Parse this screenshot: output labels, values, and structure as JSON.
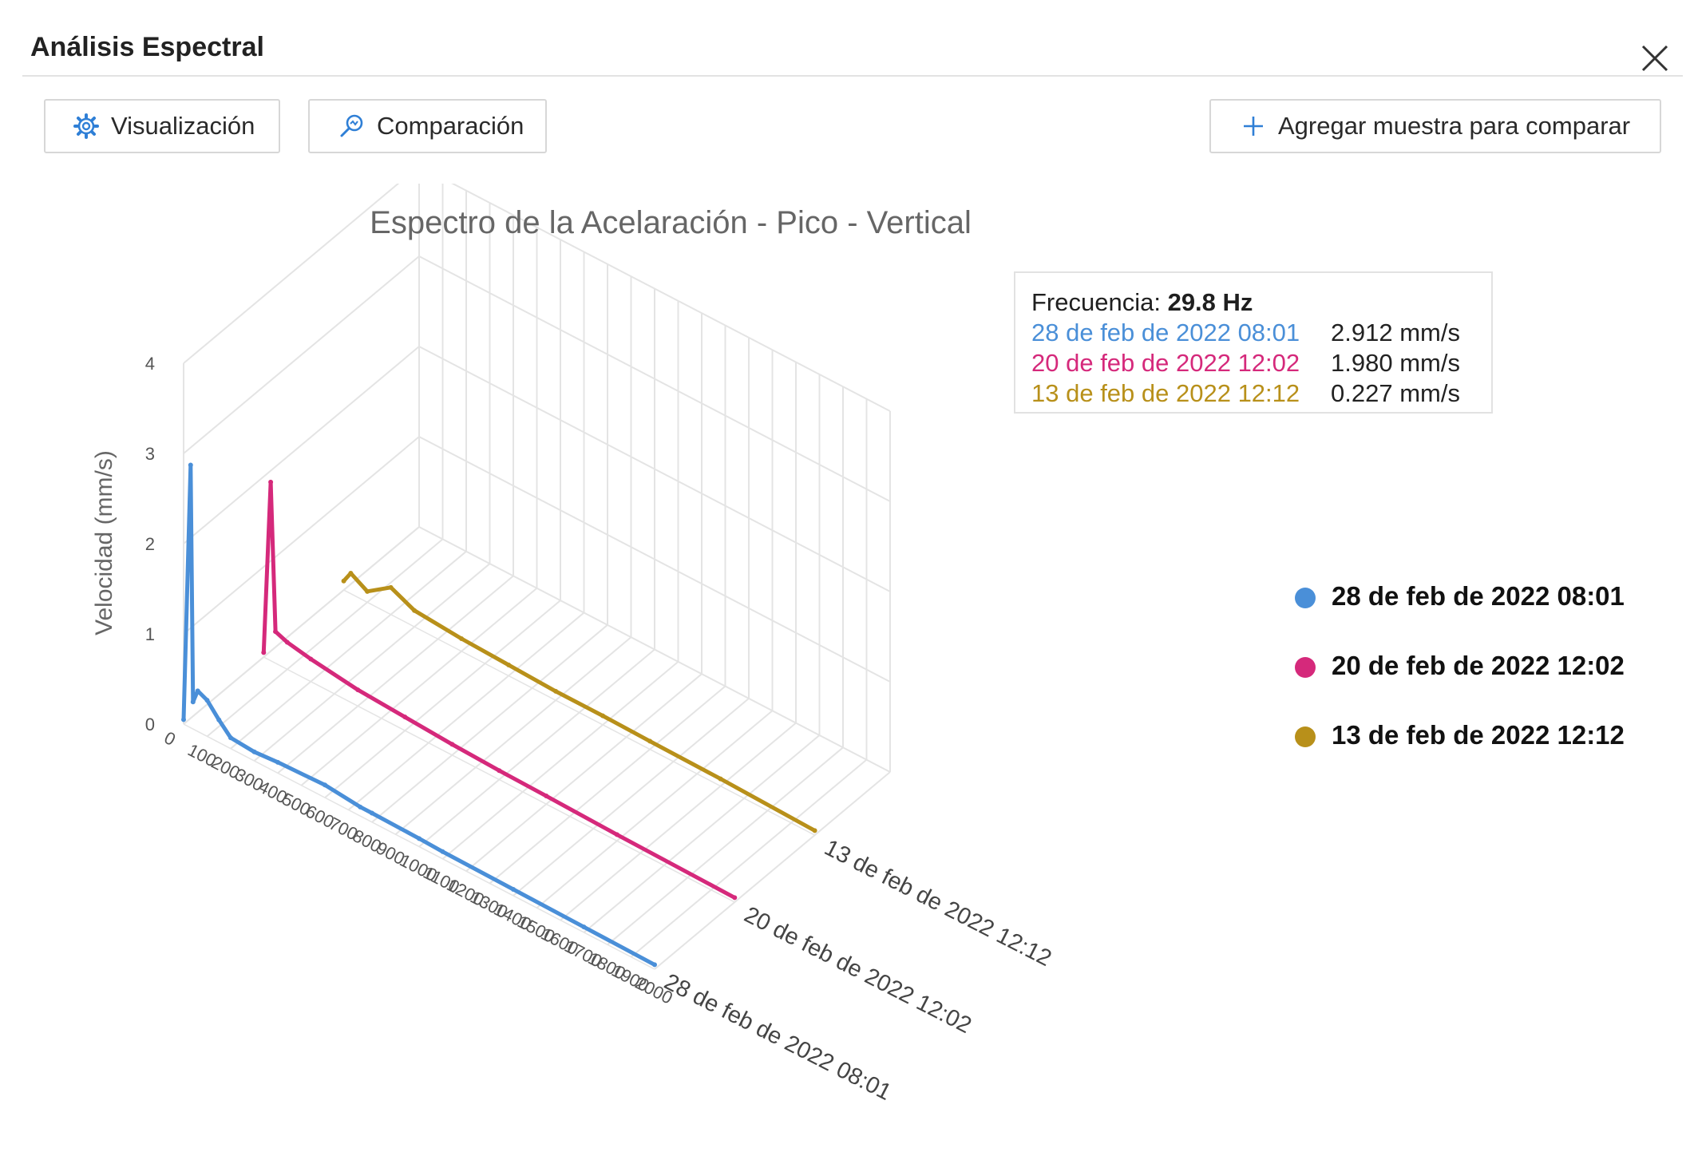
{
  "window": {
    "title": "Análisis Espectral",
    "close_icon": "close-icon"
  },
  "toolbar": {
    "visualizacion_label": "Visualización",
    "visualizacion_icon": "gear-icon",
    "comparacion_label": "Comparación",
    "comparacion_icon": "search-chart-icon",
    "agregar_label": "Agregar muestra para comparar",
    "agregar_icon": "plus-icon"
  },
  "colors": {
    "accent": "#2f7fd6",
    "series1": "#4a8fd8",
    "series2": "#d5297b",
    "series3": "#b8901a"
  },
  "tooltip": {
    "freq_label": "Frecuencia: ",
    "freq_value": "29.8 Hz",
    "rows": [
      {
        "date": "28 de feb de 2022 08:01",
        "value": "2.912 mm/s",
        "color": "#4a8fd8"
      },
      {
        "date": "20 de feb de 2022 12:02",
        "value": "1.980 mm/s",
        "color": "#d5297b"
      },
      {
        "date": "13 de feb de 2022 12:12",
        "value": "0.227 mm/s",
        "color": "#b8901a"
      }
    ]
  },
  "chart_data": {
    "type": "line",
    "title": "Espectro de la Acelaración - Pico - Vertical",
    "ylabel": "Velocidad (mm/s)",
    "xlabel": "",
    "xlim": [
      0,
      2000
    ],
    "ylim": [
      0,
      4
    ],
    "x_ticks": [
      "0",
      "100",
      "200",
      "300",
      "400",
      "500",
      "600",
      "700",
      "800",
      "900",
      "1000",
      "1100",
      "1200",
      "1300",
      "1400",
      "1500",
      "1600",
      "1700",
      "1800",
      "1900",
      "2000"
    ],
    "y_ticks": [
      "0",
      "1",
      "2",
      "3",
      "4"
    ],
    "grid": true,
    "legend_position": "right",
    "series": [
      {
        "name": "28 de feb de 2022 08:01",
        "color": "#4a8fd8",
        "points": [
          [
            0,
            0.05
          ],
          [
            29.8,
            2.912
          ],
          [
            40,
            0.3
          ],
          [
            60,
            0.45
          ],
          [
            100,
            0.4
          ],
          [
            150,
            0.25
          ],
          [
            200,
            0.12
          ],
          [
            300,
            0.1
          ],
          [
            400,
            0.12
          ],
          [
            600,
            0.14
          ],
          [
            750,
            0.1
          ],
          [
            800,
            0.1
          ],
          [
            1000,
            0.09
          ],
          [
            1100,
            0.08
          ],
          [
            1400,
            0.07
          ],
          [
            1700,
            0.06
          ],
          [
            2000,
            0.05
          ]
        ]
      },
      {
        "name": "20 de feb de 2022 12:02",
        "color": "#d5297b",
        "points": [
          [
            0,
            0.05
          ],
          [
            29.8,
            1.98
          ],
          [
            50,
            0.35
          ],
          [
            100,
            0.3
          ],
          [
            200,
            0.25
          ],
          [
            400,
            0.18
          ],
          [
            600,
            0.15
          ],
          [
            800,
            0.12
          ],
          [
            1000,
            0.1
          ],
          [
            1200,
            0.09
          ],
          [
            1500,
            0.07
          ],
          [
            2000,
            0.05
          ]
        ]
      },
      {
        "name": "13 de feb de 2022 12:12",
        "color": "#b8901a",
        "points": [
          [
            0,
            0.1
          ],
          [
            29.8,
            0.227
          ],
          [
            100,
            0.12
          ],
          [
            200,
            0.3
          ],
          [
            300,
            0.18
          ],
          [
            500,
            0.14
          ],
          [
            700,
            0.12
          ],
          [
            900,
            0.1
          ],
          [
            1100,
            0.1
          ],
          [
            1300,
            0.09
          ],
          [
            1600,
            0.08
          ],
          [
            2000,
            0.05
          ]
        ]
      }
    ]
  }
}
